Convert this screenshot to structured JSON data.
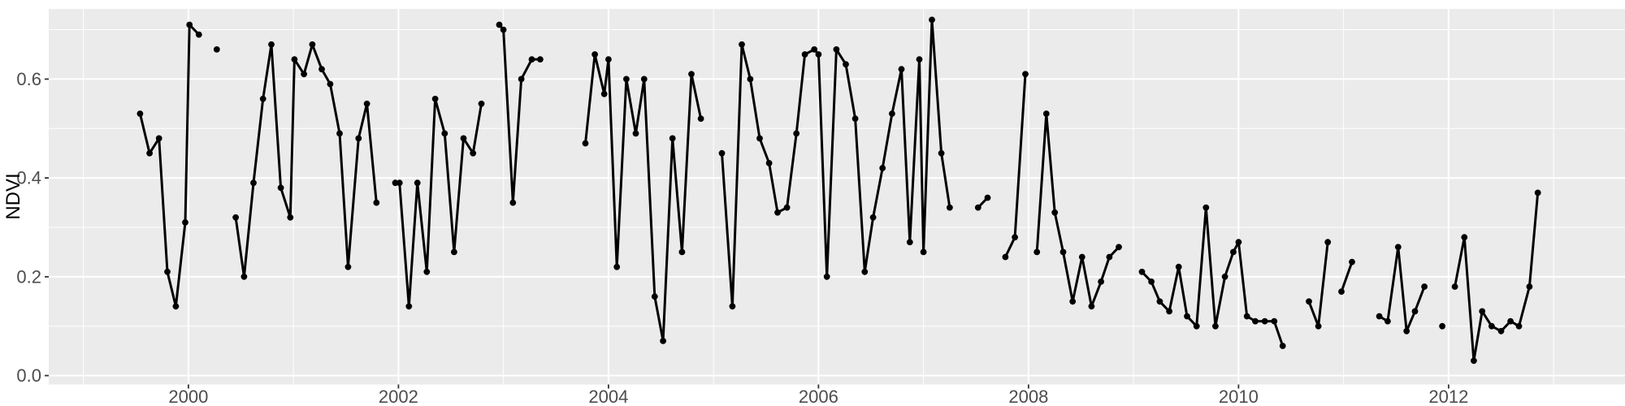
{
  "page": {
    "background": "#ffffff"
  },
  "chart_data": {
    "type": "line",
    "title": "",
    "subtitle": "",
    "xlabel": "",
    "ylabel": "NDVI",
    "legend": "none",
    "grid": true,
    "xlim": [
      1998.67,
      2013.68
    ],
    "ylim": [
      -0.018,
      0.742
    ],
    "x_ticks": [
      {
        "value": 2000,
        "label": "2000"
      },
      {
        "value": 2002,
        "label": "2002"
      },
      {
        "value": 2004,
        "label": "2004"
      },
      {
        "value": 2006,
        "label": "2006"
      },
      {
        "value": 2008,
        "label": "2008"
      },
      {
        "value": 2010,
        "label": "2010"
      },
      {
        "value": 2012,
        "label": "2012"
      }
    ],
    "y_ticks": [
      {
        "value": 0.0,
        "label": "0.0"
      },
      {
        "value": 0.2,
        "label": "0.2"
      },
      {
        "value": 0.4,
        "label": "0.4"
      },
      {
        "value": 0.6,
        "label": "0.6"
      }
    ],
    "x_minor": [
      1999,
      2001,
      2003,
      2005,
      2007,
      2009,
      2011,
      2013
    ],
    "y_minor": [
      0.1,
      0.3,
      0.5,
      0.7
    ],
    "style": {
      "panel_bg": "#EBEBEB",
      "grid_major": "#FFFFFF",
      "grid_minor": "#FFFFFF",
      "line_color": "#000000",
      "point_color": "#000000",
      "tick_mark_color": "#333333",
      "tick_label_color": "#4D4D4D",
      "axis_title_color": "#000000"
    },
    "series": [
      {
        "name": "NDVI",
        "segments": [
          [
            [
              1999.54,
              0.53
            ],
            [
              1999.63,
              0.45
            ],
            [
              1999.72,
              0.48
            ],
            [
              1999.8,
              0.21
            ],
            [
              1999.88,
              0.14
            ],
            [
              1999.97,
              0.31
            ],
            [
              2000.01,
              0.71
            ],
            [
              2000.1,
              0.69
            ]
          ],
          [
            [
              2000.27,
              0.66
            ]
          ],
          [
            [
              2000.45,
              0.32
            ],
            [
              2000.53,
              0.2
            ],
            [
              2000.62,
              0.39
            ],
            [
              2000.71,
              0.56
            ],
            [
              2000.79,
              0.67
            ],
            [
              2000.88,
              0.38
            ],
            [
              2000.97,
              0.32
            ],
            [
              2001.01,
              0.64
            ],
            [
              2001.1,
              0.61
            ],
            [
              2001.18,
              0.67
            ],
            [
              2001.27,
              0.62
            ],
            [
              2001.35,
              0.59
            ],
            [
              2001.44,
              0.49
            ],
            [
              2001.52,
              0.22
            ],
            [
              2001.62,
              0.48
            ],
            [
              2001.7,
              0.55
            ],
            [
              2001.79,
              0.35
            ]
          ],
          [
            [
              2001.97,
              0.39
            ],
            [
              2002.01,
              0.39
            ],
            [
              2002.1,
              0.14
            ],
            [
              2002.18,
              0.39
            ],
            [
              2002.27,
              0.21
            ],
            [
              2002.35,
              0.56
            ],
            [
              2002.44,
              0.49
            ],
            [
              2002.53,
              0.25
            ],
            [
              2002.62,
              0.48
            ],
            [
              2002.71,
              0.45
            ],
            [
              2002.79,
              0.55
            ]
          ],
          [
            [
              2002.96,
              0.71
            ],
            [
              2003.0,
              0.7
            ],
            [
              2003.09,
              0.35
            ],
            [
              2003.17,
              0.6
            ],
            [
              2003.27,
              0.64
            ],
            [
              2003.35,
              0.64
            ]
          ],
          [
            [
              2003.78,
              0.47
            ],
            [
              2003.87,
              0.65
            ],
            [
              2003.96,
              0.57
            ],
            [
              2004.0,
              0.64
            ],
            [
              2004.08,
              0.22
            ],
            [
              2004.17,
              0.6
            ],
            [
              2004.26,
              0.49
            ],
            [
              2004.34,
              0.6
            ],
            [
              2004.44,
              0.16
            ],
            [
              2004.52,
              0.07
            ],
            [
              2004.61,
              0.48
            ],
            [
              2004.7,
              0.25
            ],
            [
              2004.79,
              0.61
            ],
            [
              2004.88,
              0.52
            ]
          ],
          [
            [
              2005.08,
              0.45
            ],
            [
              2005.18,
              0.14
            ],
            [
              2005.27,
              0.67
            ],
            [
              2005.35,
              0.6
            ],
            [
              2005.44,
              0.48
            ],
            [
              2005.53,
              0.43
            ],
            [
              2005.61,
              0.33
            ],
            [
              2005.7,
              0.34
            ],
            [
              2005.79,
              0.49
            ],
            [
              2005.87,
              0.65
            ],
            [
              2005.96,
              0.66
            ],
            [
              2006.0,
              0.65
            ],
            [
              2006.08,
              0.2
            ],
            [
              2006.17,
              0.66
            ],
            [
              2006.26,
              0.63
            ],
            [
              2006.35,
              0.52
            ],
            [
              2006.44,
              0.21
            ],
            [
              2006.52,
              0.32
            ],
            [
              2006.61,
              0.42
            ],
            [
              2006.7,
              0.53
            ],
            [
              2006.79,
              0.62
            ],
            [
              2006.87,
              0.27
            ],
            [
              2006.96,
              0.64
            ],
            [
              2007.0,
              0.25
            ],
            [
              2007.08,
              0.72
            ],
            [
              2007.17,
              0.45
            ],
            [
              2007.25,
              0.34
            ]
          ],
          [
            [
              2007.52,
              0.34
            ],
            [
              2007.61,
              0.36
            ]
          ],
          [
            [
              2007.78,
              0.24
            ],
            [
              2007.87,
              0.28
            ],
            [
              2007.97,
              0.61
            ]
          ],
          [
            [
              2008.08,
              0.25
            ],
            [
              2008.17,
              0.53
            ],
            [
              2008.25,
              0.33
            ],
            [
              2008.33,
              0.25
            ],
            [
              2008.42,
              0.15
            ],
            [
              2008.51,
              0.24
            ],
            [
              2008.6,
              0.14
            ],
            [
              2008.69,
              0.19
            ],
            [
              2008.77,
              0.24
            ],
            [
              2008.86,
              0.26
            ]
          ],
          [
            [
              2009.08,
              0.21
            ],
            [
              2009.17,
              0.19
            ],
            [
              2009.25,
              0.15
            ],
            [
              2009.34,
              0.13
            ],
            [
              2009.43,
              0.22
            ],
            [
              2009.51,
              0.12
            ],
            [
              2009.6,
              0.1
            ],
            [
              2009.69,
              0.34
            ],
            [
              2009.78,
              0.1
            ],
            [
              2009.87,
              0.2
            ],
            [
              2009.95,
              0.25
            ],
            [
              2010.0,
              0.27
            ],
            [
              2010.08,
              0.12
            ],
            [
              2010.16,
              0.11
            ],
            [
              2010.25,
              0.11
            ],
            [
              2010.34,
              0.11
            ],
            [
              2010.42,
              0.06
            ]
          ],
          [
            [
              2010.67,
              0.15
            ],
            [
              2010.76,
              0.1
            ],
            [
              2010.85,
              0.27
            ]
          ],
          [
            [
              2010.98,
              0.17
            ],
            [
              2011.08,
              0.23
            ]
          ],
          [
            [
              2011.34,
              0.12
            ],
            [
              2011.42,
              0.11
            ],
            [
              2011.52,
              0.26
            ],
            [
              2011.6,
              0.09
            ],
            [
              2011.68,
              0.13
            ],
            [
              2011.77,
              0.18
            ]
          ],
          [
            [
              2011.94,
              0.1
            ]
          ],
          [
            [
              2012.06,
              0.18
            ],
            [
              2012.15,
              0.28
            ],
            [
              2012.24,
              0.03
            ],
            [
              2012.32,
              0.13
            ],
            [
              2012.41,
              0.1
            ],
            [
              2012.5,
              0.09
            ],
            [
              2012.59,
              0.11
            ],
            [
              2012.67,
              0.1
            ],
            [
              2012.77,
              0.18
            ],
            [
              2012.85,
              0.37
            ]
          ]
        ]
      }
    ]
  }
}
